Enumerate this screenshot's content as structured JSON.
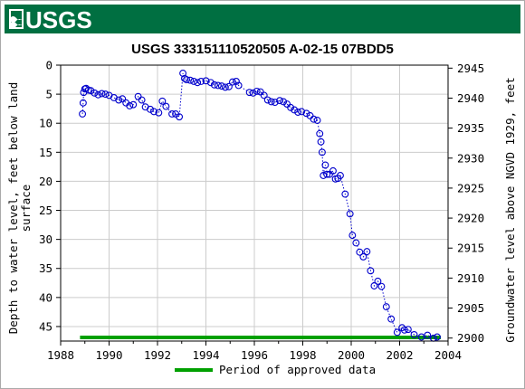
{
  "header": {
    "logo_text": "USGS",
    "bar_color": "#006f41"
  },
  "chart_data": {
    "type": "scatter",
    "title": "USGS 333151110520505 A-02-15 07BDD5",
    "xlabel": "",
    "ylabel_left": "Depth to water level, feet below land surface",
    "ylabel_left_lines": [
      "Depth to water level, feet below land",
      "surface"
    ],
    "ylabel_right": "Groundwater level above NGVD 1929, feet",
    "xlim": [
      1988,
      2004
    ],
    "ylim_left": [
      0,
      47.5
    ],
    "ylim_right": [
      2899.5,
      2945.5
    ],
    "left_inverted": true,
    "x_ticks": [
      "1988",
      "1990",
      "1992",
      "1994",
      "1996",
      "1998",
      "2000",
      "2002",
      "2004"
    ],
    "y_ticks_left": [
      "0",
      "5",
      "10",
      "15",
      "20",
      "25",
      "30",
      "35",
      "40",
      "45"
    ],
    "y_ticks_right": [
      "2900",
      "2905",
      "2910",
      "2915",
      "2920",
      "2925",
      "2930",
      "2935",
      "2940",
      "2945"
    ],
    "grid": true,
    "point_color": "#0000cc",
    "series": [
      {
        "x": [
          1988.9,
          1988.93,
          1988.95,
          1989.0,
          1989.05,
          1989.15,
          1989.25,
          1989.4,
          1989.55,
          1989.7,
          1989.85,
          1990.0,
          1990.2,
          1990.4,
          1990.55,
          1990.7,
          1990.85,
          1991.0,
          1991.2,
          1991.35,
          1991.5,
          1991.7,
          1991.85,
          1992.05,
          1992.2,
          1992.35,
          1992.6,
          1992.75,
          1992.9,
          1993.05,
          1993.12,
          1993.2,
          1993.35,
          1993.5,
          1993.65,
          1993.8,
          1994.0,
          1994.2,
          1994.35,
          1994.5,
          1994.65,
          1994.8,
          1994.95,
          1995.1,
          1995.25,
          1995.35,
          1995.8,
          1995.95,
          1996.1,
          1996.25,
          1996.4,
          1996.55,
          1996.7,
          1996.85,
          1997.05,
          1997.2,
          1997.35,
          1997.5,
          1997.65,
          1997.8,
          1997.95,
          1998.15,
          1998.3,
          1998.45,
          1998.6,
          1998.7,
          1998.75,
          1998.8,
          1998.85,
          1998.93,
          1999.0,
          1999.1,
          1999.25,
          1999.35,
          1999.45,
          1999.55,
          1999.75,
          1999.95,
          2000.05,
          2000.2,
          2000.35,
          2000.5,
          2000.65,
          2000.8,
          2000.95,
          2001.1,
          2001.25,
          2001.45,
          2001.65,
          2001.9,
          2002.1,
          2002.2,
          2002.35,
          2002.6,
          2002.9,
          2003.15,
          2003.4,
          2003.55
        ],
        "y": [
          8.4,
          6.5,
          4.7,
          4.1,
          4.0,
          4.3,
          4.4,
          4.8,
          5.1,
          4.9,
          5.0,
          5.2,
          5.6,
          6.0,
          5.8,
          6.5,
          7.0,
          6.8,
          5.4,
          6.0,
          7.2,
          7.6,
          8.0,
          8.2,
          6.2,
          7.1,
          8.4,
          8.4,
          8.9,
          1.4,
          2.3,
          2.5,
          2.6,
          2.8,
          3.0,
          2.8,
          2.7,
          3.0,
          3.4,
          3.5,
          3.6,
          3.8,
          3.7,
          2.9,
          2.8,
          3.5,
          4.7,
          4.8,
          4.5,
          4.6,
          5.2,
          6.0,
          6.3,
          6.4,
          6.1,
          6.3,
          6.7,
          7.3,
          7.7,
          8.1,
          8.0,
          8.3,
          8.7,
          9.3,
          9.5,
          11.8,
          13.2,
          15.0,
          19.0,
          17.2,
          18.8,
          18.8,
          18.2,
          19.6,
          19.5,
          19.0,
          22.2,
          25.6,
          29.3,
          30.6,
          32.2,
          33.0,
          32.1,
          35.4,
          38.0,
          37.2,
          38.1,
          41.6,
          43.7,
          46.0,
          45.2,
          45.6,
          45.5,
          46.4,
          46.8,
          46.5,
          47.0,
          46.8
        ]
      }
    ],
    "approved_period": {
      "start": 1988.8,
      "end": 2003.7,
      "color": "#00a000"
    },
    "legend_label": "Period of approved data",
    "legend_position": "bottom-center"
  }
}
